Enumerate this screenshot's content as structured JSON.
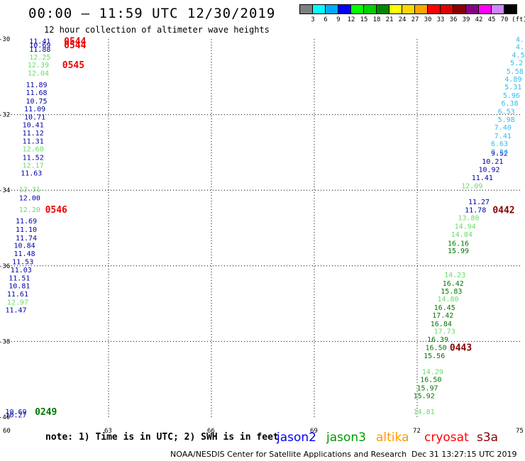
{
  "header": {
    "title": "00:00 – 11:59 UTC 12/30/2019",
    "subtitle": "12 hour collection of altimeter wave heights"
  },
  "colorbar": {
    "unit": "(ft)",
    "swatches": [
      "#808080",
      "#00ffff",
      "#00aaff",
      "#0000ff",
      "#00ff00",
      "#00d000",
      "#008800",
      "#ffff00",
      "#ffd700",
      "#ffa500",
      "#ff0000",
      "#dd0000",
      "#880000",
      "#880088",
      "#ff00ff",
      "#cc88ff",
      "#000000"
    ],
    "labels": [
      "3",
      "6",
      "9",
      "12",
      "15",
      "18",
      "21",
      "24",
      "27",
      "30",
      "33",
      "36",
      "39",
      "42",
      "45",
      "70"
    ]
  },
  "note": "note: 1) Time is in UTC; 2) SWH is in feet",
  "satellites": [
    {
      "name": "jason2",
      "color": "#0000ff"
    },
    {
      "name": "jason3",
      "color": "#009900"
    },
    {
      "name": "altika",
      "color": "#ff9900"
    },
    {
      "name": "cryosat",
      "color": "#ff0000"
    },
    {
      "name": "s3a",
      "color": "#880000"
    }
  ],
  "footer": {
    "credit": "NOAA/NESDIS Center for Satellite Applications and Research",
    "timestamp": "Dec 31 13:27:15 UTC 2019"
  },
  "chart_data": {
    "type": "scatter",
    "xlim": [
      60,
      75
    ],
    "ylim": [
      -40,
      -30
    ],
    "x_ticks": [
      "60",
      "63",
      "66",
      "69",
      "72",
      "75"
    ],
    "y_ticks": [
      "-30",
      "-32",
      "-34",
      "-36",
      "-38",
      "-40"
    ],
    "grid": true,
    "series": [
      {
        "color": "#0000aa",
        "points": [
          {
            "x": 61.0,
            "y": -30.05,
            "label": "11.41"
          },
          {
            "x": 61.0,
            "y": -30.26,
            "label": "11.88"
          },
          {
            "x": 60.9,
            "y": -31.2,
            "label": "11.89"
          },
          {
            "x": 60.9,
            "y": -31.41,
            "label": "11.68"
          },
          {
            "x": 60.9,
            "y": -31.63,
            "label": "10.75"
          },
          {
            "x": 60.85,
            "y": -31.84,
            "label": "11.09"
          },
          {
            "x": 60.85,
            "y": -32.05,
            "label": "10.71"
          },
          {
            "x": 60.8,
            "y": -32.26,
            "label": "10.41"
          },
          {
            "x": 60.8,
            "y": -32.48,
            "label": "11.12"
          },
          {
            "x": 60.8,
            "y": -32.69,
            "label": "11.31"
          },
          {
            "x": 60.8,
            "y": -33.12,
            "label": "11.52"
          },
          {
            "x": 60.75,
            "y": -33.54,
            "label": "11.63"
          },
          {
            "x": 60.7,
            "y": -34.19,
            "label": "12.00"
          },
          {
            "x": 60.6,
            "y": -34.8,
            "label": "11.69"
          },
          {
            "x": 60.6,
            "y": -35.03,
            "label": "11.10"
          },
          {
            "x": 60.6,
            "y": -35.25,
            "label": "11.74"
          },
          {
            "x": 60.55,
            "y": -35.45,
            "label": "10.84"
          },
          {
            "x": 60.55,
            "y": -35.67,
            "label": "11.48"
          },
          {
            "x": 60.5,
            "y": -35.88,
            "label": "11.53"
          },
          {
            "x": 60.45,
            "y": -36.1,
            "label": "11.03"
          },
          {
            "x": 60.4,
            "y": -36.31,
            "label": "11.51"
          },
          {
            "x": 60.4,
            "y": -36.52,
            "label": "10.81"
          },
          {
            "x": 60.35,
            "y": -36.74,
            "label": "11.61"
          },
          {
            "x": 60.3,
            "y": -37.16,
            "label": "11.47"
          },
          {
            "x": 60.3,
            "y": -39.93,
            "label": "10.27"
          },
          {
            "x": 74.4,
            "y": -33.01,
            "label": "9.52"
          },
          {
            "x": 74.2,
            "y": -33.23,
            "label": "10.21"
          },
          {
            "x": 74.1,
            "y": -33.44,
            "label": "10.92"
          },
          {
            "x": 73.9,
            "y": -33.66,
            "label": "11.41"
          },
          {
            "x": 73.8,
            "y": -34.3,
            "label": "11.27"
          },
          {
            "x": 73.7,
            "y": -34.51,
            "label": "11.78"
          }
        ]
      },
      {
        "color": "#33bbee",
        "points": [
          {
            "x": 75.0,
            "y": -30.0,
            "label": "4."
          },
          {
            "x": 75.0,
            "y": -30.2,
            "label": "4."
          },
          {
            "x": 74.95,
            "y": -30.41,
            "label": "4.5"
          },
          {
            "x": 74.9,
            "y": -30.62,
            "label": "5.2"
          },
          {
            "x": 74.85,
            "y": -30.84,
            "label": "5.58"
          },
          {
            "x": 74.8,
            "y": -31.05,
            "label": "4.89"
          },
          {
            "x": 74.8,
            "y": -31.26,
            "label": "5.31"
          },
          {
            "x": 74.75,
            "y": -31.48,
            "label": "5.96"
          },
          {
            "x": 74.7,
            "y": -31.69,
            "label": "6.38"
          },
          {
            "x": 74.6,
            "y": -31.9,
            "label": "6.53"
          },
          {
            "x": 74.6,
            "y": -32.12,
            "label": "5.98"
          },
          {
            "x": 74.5,
            "y": -32.33,
            "label": "7.40"
          },
          {
            "x": 74.5,
            "y": -32.55,
            "label": "7.41"
          },
          {
            "x": 74.4,
            "y": -32.76,
            "label": "6.63"
          },
          {
            "x": 74.4,
            "y": -32.97,
            "label": "7.54"
          }
        ]
      },
      {
        "color": "#66dd66",
        "points": [
          {
            "x": 61.0,
            "y": -30.47,
            "label": "12.25"
          },
          {
            "x": 60.95,
            "y": -30.68,
            "label": "12.39"
          },
          {
            "x": 60.95,
            "y": -30.89,
            "label": "12.04"
          },
          {
            "x": 60.8,
            "y": -32.9,
            "label": "12.60"
          },
          {
            "x": 60.8,
            "y": -33.33,
            "label": "12.17"
          },
          {
            "x": 60.7,
            "y": -33.97,
            "label": "12.31"
          },
          {
            "x": 60.7,
            "y": -34.5,
            "label": "12.20"
          },
          {
            "x": 60.35,
            "y": -36.95,
            "label": "12.97"
          },
          {
            "x": 73.6,
            "y": -33.87,
            "label": "12.09"
          },
          {
            "x": 73.5,
            "y": -34.72,
            "label": "13.80"
          },
          {
            "x": 73.4,
            "y": -34.94,
            "label": "14.94"
          },
          {
            "x": 73.3,
            "y": -35.16,
            "label": "14.84"
          },
          {
            "x": 73.1,
            "y": -36.23,
            "label": "14.23"
          },
          {
            "x": 72.9,
            "y": -36.87,
            "label": "14.80"
          },
          {
            "x": 72.8,
            "y": -37.72,
            "label": "17.73"
          },
          {
            "x": 72.45,
            "y": -38.79,
            "label": "14.29"
          },
          {
            "x": 72.2,
            "y": -39.85,
            "label": "14.81"
          }
        ]
      },
      {
        "color": "#007700",
        "points": [
          {
            "x": 73.2,
            "y": -35.39,
            "label": "16.16"
          },
          {
            "x": 73.2,
            "y": -35.59,
            "label": "15.99"
          },
          {
            "x": 73.05,
            "y": -36.45,
            "label": "16.42"
          },
          {
            "x": 73.0,
            "y": -36.66,
            "label": "15.83"
          },
          {
            "x": 72.8,
            "y": -37.09,
            "label": "16.45"
          },
          {
            "x": 72.75,
            "y": -37.3,
            "label": "17.42"
          },
          {
            "x": 72.7,
            "y": -37.52,
            "label": "16.84"
          },
          {
            "x": 72.6,
            "y": -37.94,
            "label": "16.39"
          },
          {
            "x": 72.55,
            "y": -38.15,
            "label": "16.50"
          },
          {
            "x": 72.5,
            "y": -38.37,
            "label": "15.56"
          },
          {
            "x": 72.4,
            "y": -39.0,
            "label": "16.50"
          },
          {
            "x": 72.3,
            "y": -39.22,
            "label": "15.97"
          },
          {
            "x": 72.2,
            "y": -39.43,
            "label": "15.92"
          }
        ]
      },
      {
        "color": "#0000aa",
        "points": [
          {
            "x": 61.0,
            "y": -30.15,
            "label": "10.69"
          },
          {
            "x": 60.3,
            "y": -39.85,
            "label": "10.69"
          }
        ]
      }
    ],
    "annotations": [
      {
        "text": "0544",
        "x": 61.7,
        "y": -30.05,
        "color": "#ee0000"
      },
      {
        "text": "0544",
        "x": 61.7,
        "y": -30.15,
        "color": "#ee0000"
      },
      {
        "text": "0545",
        "x": 61.65,
        "y": -30.68,
        "color": "#ee0000"
      },
      {
        "text": "0546",
        "x": 61.15,
        "y": -34.5,
        "color": "#ee0000"
      },
      {
        "text": "0249",
        "x": 60.85,
        "y": -39.85,
        "color": "#007700"
      },
      {
        "text": "0442",
        "x": 74.2,
        "y": -34.51,
        "color": "#880000"
      },
      {
        "text": "0443",
        "x": 72.95,
        "y": -38.15,
        "color": "#880000"
      }
    ]
  }
}
